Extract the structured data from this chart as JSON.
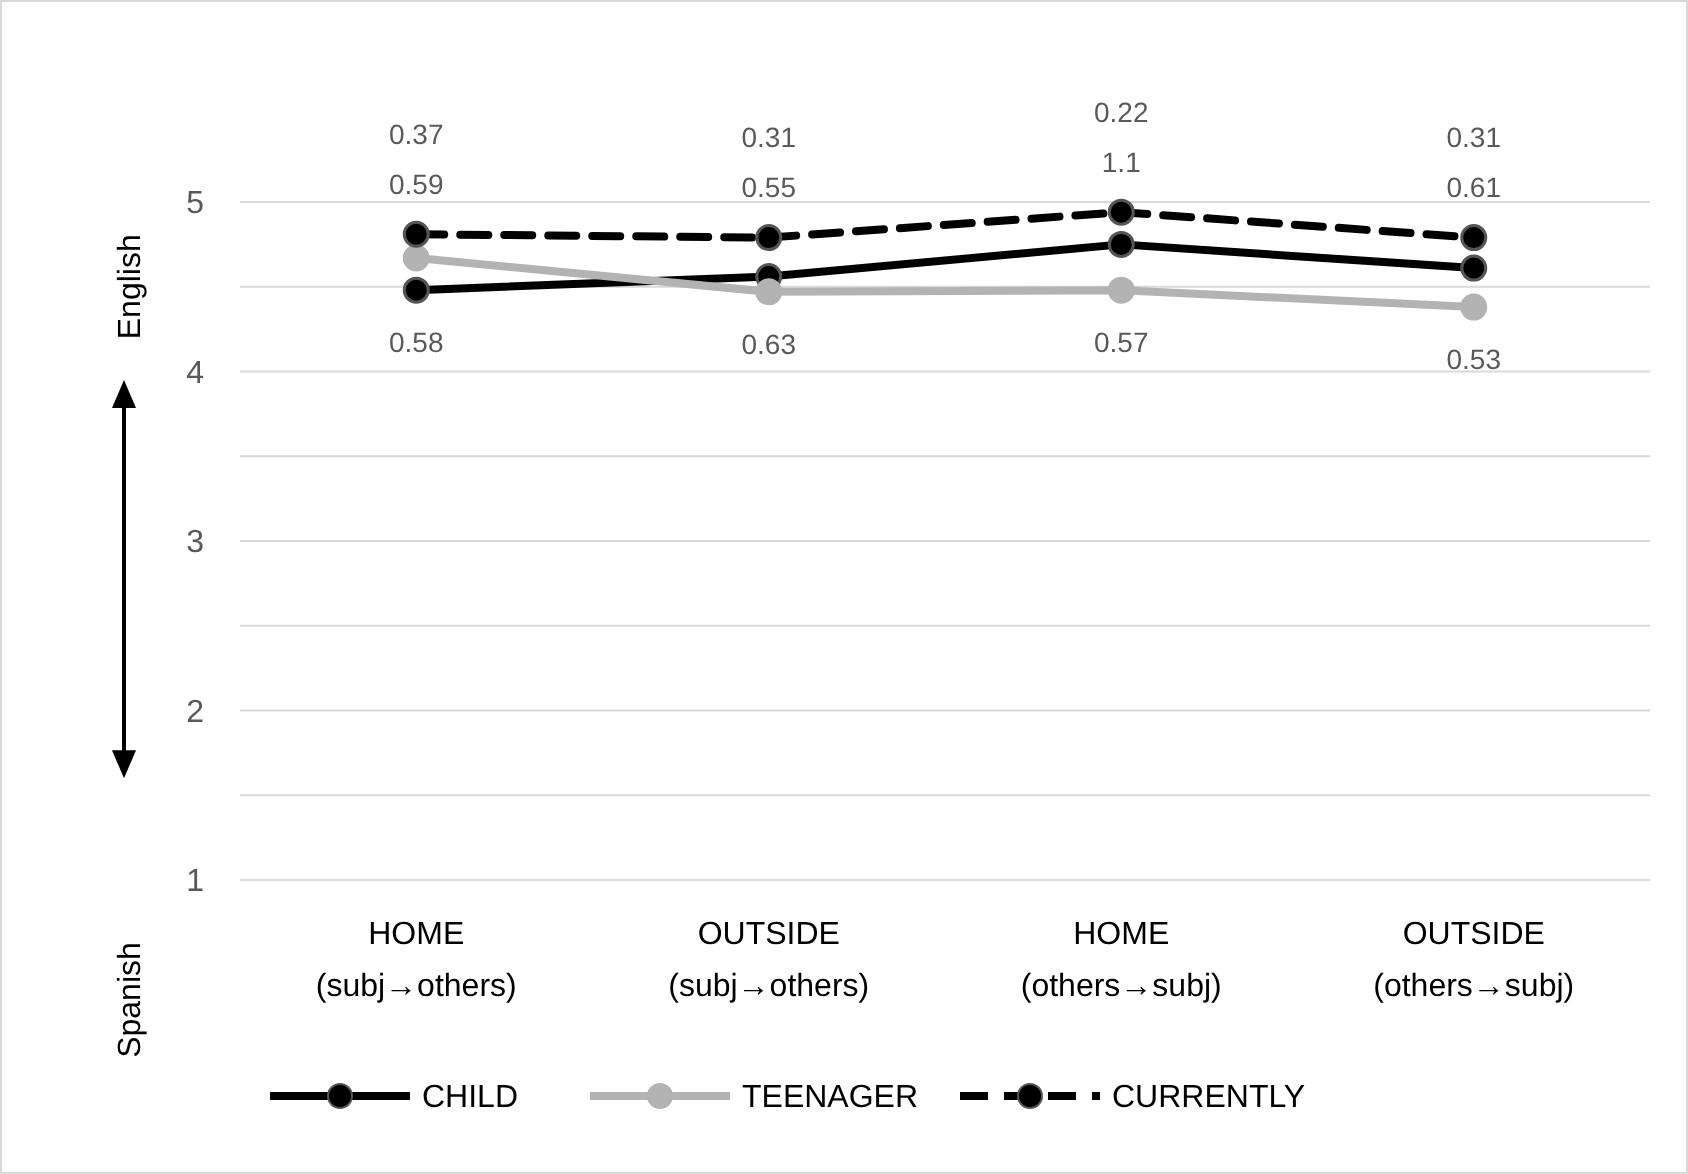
{
  "chart_data": {
    "type": "line",
    "categories": [
      "HOME\n(subj→others)",
      "OUTSIDE\n(subj→others)",
      "HOME\n(others→subj)",
      "OUTSIDE\n(others→subj)"
    ],
    "series": [
      {
        "name": "CHILD",
        "color": "#000000",
        "values": [
          4.48,
          4.56,
          4.75,
          4.61
        ],
        "line_style": "solid"
      },
      {
        "name": "TEENAGER",
        "color": "#b3b3b3",
        "values": [
          4.67,
          4.47,
          4.48,
          4.38
        ],
        "line_style": "solid"
      },
      {
        "name": "CURRENTLY",
        "color": "#000000",
        "values": [
          4.81,
          4.79,
          4.94,
          4.79
        ],
        "line_style": "dashed"
      }
    ],
    "ylim": [
      1,
      5
    ],
    "yticks": [
      1,
      {
        "value": 1.5,
        "label": null
      },
      2,
      {
        "value": 2.5,
        "label": null
      },
      3,
      {
        "value": 3.5,
        "label": null
      },
      4,
      {
        "value": 4.5,
        "label": null
      },
      5
    ],
    "grid": "y",
    "legend": "bottom",
    "marker": "circle",
    "annotations": [
      "English",
      "Spanish",
      "0.37",
      "0.59",
      "0.58",
      "0.31",
      "0.55",
      "0.63",
      "0.22",
      "1.1",
      "0.57",
      "0.31",
      "0.61",
      "0.53"
    ]
  }
}
